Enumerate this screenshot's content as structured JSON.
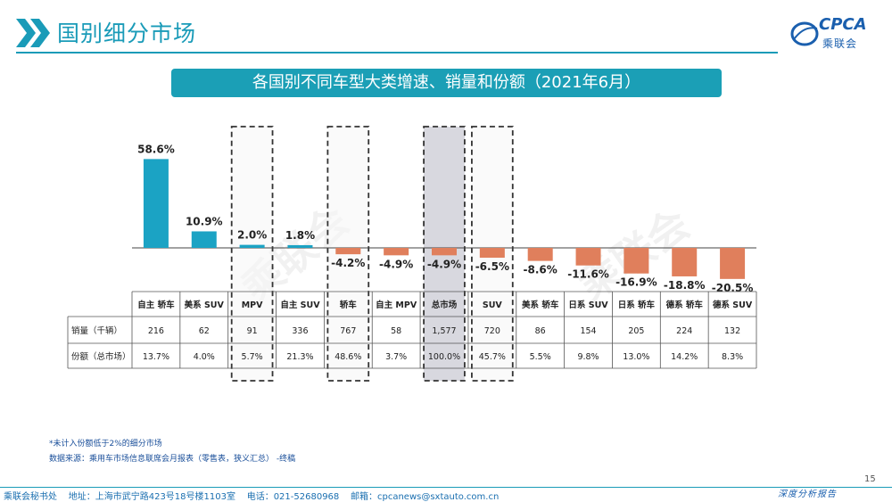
{
  "header": {
    "title": "国别细分市场",
    "banner": "各国别不同车型大类增速、销量和份额（2021年6月）"
  },
  "logo": {
    "text": "CPCA",
    "cn": "乘联会"
  },
  "page_number": "15",
  "notes": {
    "line1": "*未计入份额低于2%的细分市场",
    "line2": "数据来源：乘用车市场信息联席会月报表（零售表，狭义汇总）  -终稿"
  },
  "footer": {
    "left": "乘联会秘书处    地址：上海市武宁路423号18号楼1103室    电话：021-52680968    邮箱：cpcanews@sxtauto.com.cn",
    "right": "深度分析报告"
  },
  "watermark": "乘联会",
  "colors": {
    "positive": "#1ba3c4",
    "negative": "#e07f5c",
    "accent": "#1a9bb8",
    "highlight_fill": "#d4d4dc"
  },
  "chart_data": {
    "type": "bar",
    "categories": [
      "自主 轿车",
      "美系 SUV",
      "MPV",
      "自主 SUV",
      "轿车",
      "自主 MPV",
      "总市场",
      "SUV",
      "美系 轿车",
      "日系 SUV",
      "日系 轿车",
      "德系 轿车",
      "德系 SUV"
    ],
    "data_labels": [
      "58.6%",
      "10.9%",
      "2.0%",
      "1.8%",
      "-4.2%",
      "-4.9%",
      "-4.9%",
      "-6.5%",
      "-8.6%",
      "-11.6%",
      "-16.9%",
      "-18.8%",
      "-20.5%"
    ],
    "values": [
      58.6,
      10.9,
      2.0,
      1.8,
      -4.2,
      -4.9,
      -4.9,
      -6.5,
      -8.6,
      -11.6,
      -16.9,
      -18.8,
      -20.5
    ],
    "dashed_box": [
      false,
      false,
      true,
      false,
      true,
      false,
      true,
      true,
      false,
      false,
      false,
      false,
      false
    ],
    "shaded_box": [
      false,
      false,
      false,
      false,
      false,
      false,
      true,
      false,
      false,
      false,
      false,
      false,
      false
    ],
    "table": {
      "row_labels": [
        "销量（千辆）",
        "份额（总市场）"
      ],
      "rows": [
        [
          "216",
          "62",
          "91",
          "336",
          "767",
          "58",
          "1,577",
          "720",
          "86",
          "154",
          "205",
          "224",
          "132"
        ],
        [
          "13.7%",
          "4.0%",
          "5.7%",
          "21.3%",
          "48.6%",
          "3.7%",
          "100.0%",
          "45.7%",
          "5.5%",
          "9.8%",
          "13.0%",
          "14.2%",
          "8.3%"
        ]
      ]
    }
  }
}
